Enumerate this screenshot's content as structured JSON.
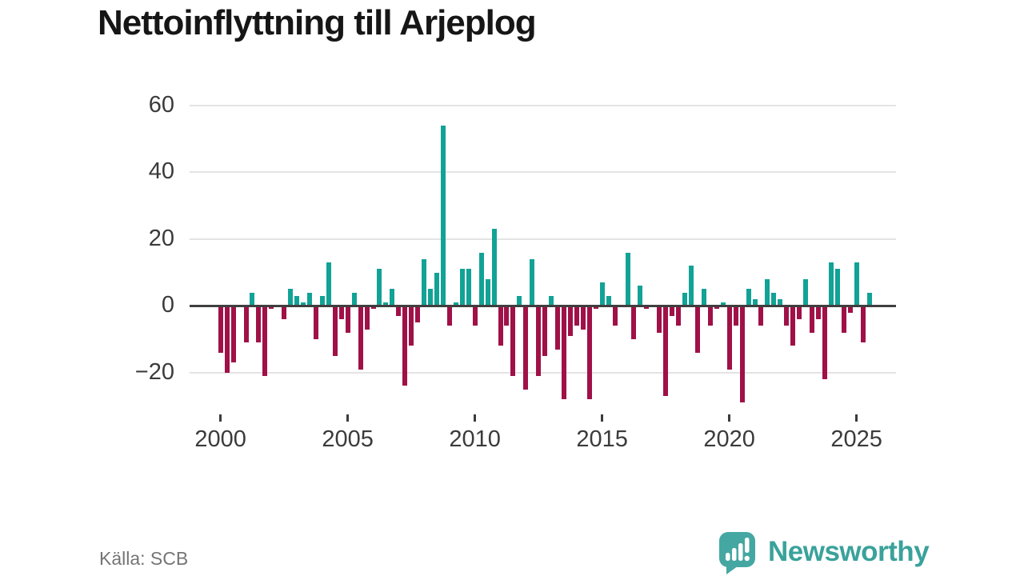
{
  "title": "Nettoinflyttning till Arjeplog",
  "source": "Källa: SCB",
  "brand": {
    "name": "Newsworthy",
    "icon": "bar-chart-speech-bubble-icon"
  },
  "colors": {
    "positive": "#12a296",
    "negative": "#a01148",
    "grid": "#e4e4e4",
    "zero_line": "#3f3f3f",
    "axis_text": "#3b3b3b",
    "title_text": "#161616",
    "source_text": "#757575",
    "brand_teal": "#3aa29b"
  },
  "chart_data": {
    "type": "bar",
    "title": "Nettoinflyttning till Arjeplog",
    "frequency": "quarterly",
    "x_start": "2000-Q1",
    "x_end": "2025-Q3",
    "x_tick_labels": [
      "2000",
      "2005",
      "2010",
      "2015",
      "2020",
      "2025"
    ],
    "y_ticks": [
      60,
      40,
      20,
      0,
      -20
    ],
    "y_tick_labels": [
      "60",
      "40",
      "20",
      "0",
      "−20"
    ],
    "ylim": [
      -31,
      62
    ],
    "grid": "horizontal",
    "legend": "none",
    "positive_color": "#12a296",
    "negative_color": "#a01148",
    "values": [
      -14,
      -20,
      -17,
      0,
      -11,
      4,
      -11,
      -21,
      -1,
      0,
      -4,
      5,
      3,
      1,
      4,
      -10,
      3,
      13,
      -15,
      -4,
      -8,
      4,
      -19,
      -7,
      -1,
      11,
      1,
      5,
      -3,
      -24,
      -12,
      -5,
      14,
      5,
      10,
      54,
      -6,
      1,
      11,
      11,
      -6,
      16,
      8,
      23,
      -12,
      -6,
      -21,
      3,
      -25,
      14,
      -21,
      -15,
      3,
      -13,
      -28,
      -9,
      -6,
      -7,
      -28,
      -1,
      7,
      3,
      -6,
      0,
      16,
      -10,
      6,
      -1,
      0,
      -8,
      -27,
      -3,
      -6,
      4,
      12,
      -14,
      5,
      -6,
      -1,
      1,
      -19,
      -6,
      -29,
      5,
      2,
      -6,
      8,
      4,
      2,
      -6,
      -12,
      -4,
      8,
      -8,
      -4,
      -22,
      13,
      11,
      -8,
      -2,
      13,
      -11,
      4
    ]
  }
}
